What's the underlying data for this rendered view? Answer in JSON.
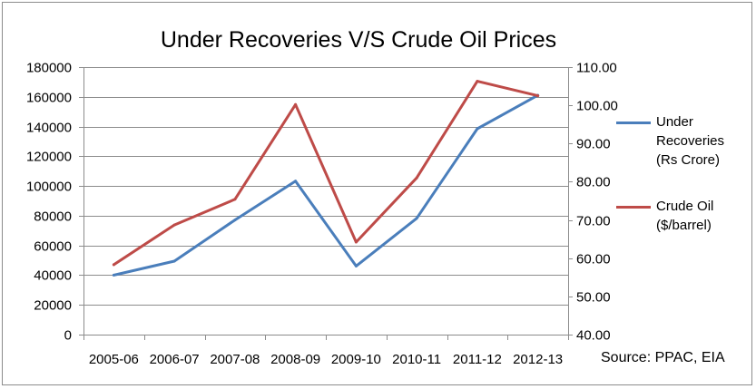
{
  "chart_data": {
    "type": "line",
    "title": "Under Recoveries V/S Crude Oil Prices",
    "categories": [
      "2005-06",
      "2006-07",
      "2007-08",
      "2008-09",
      "2009-10",
      "2010-11",
      "2011-12",
      "2012-13"
    ],
    "y_left": {
      "ylim": [
        0,
        180000
      ],
      "ticks": [
        "0",
        "20000",
        "40000",
        "60000",
        "80000",
        "100000",
        "120000",
        "140000",
        "160000",
        "180000"
      ]
    },
    "y_right": {
      "ylim": [
        40,
        110
      ],
      "ticks": [
        "40.00",
        "50.00",
        "60.00",
        "70.00",
        "80.00",
        "90.00",
        "100.00",
        "110.00"
      ]
    },
    "series": [
      {
        "name": "Under Recoveries (Rs Crore)",
        "label_lines": [
          "Under",
          "Recoveries",
          "(Rs Crore)"
        ],
        "axis": "left",
        "color": "#4a7ebb",
        "values": [
          40000,
          49400,
          77100,
          103300,
          46100,
          78200,
          138500,
          161000
        ]
      },
      {
        "name": "Crude Oil ($/barrel)",
        "label_lines": [
          "Crude Oil",
          "($/barrel)"
        ],
        "axis": "right",
        "color": "#be4b48",
        "values": [
          58.3,
          68.7,
          75.4,
          100.2,
          64.2,
          81.0,
          106.3,
          102.5
        ]
      }
    ],
    "grid": true,
    "legend": "right",
    "source": "Source: PPAC, EIA"
  }
}
